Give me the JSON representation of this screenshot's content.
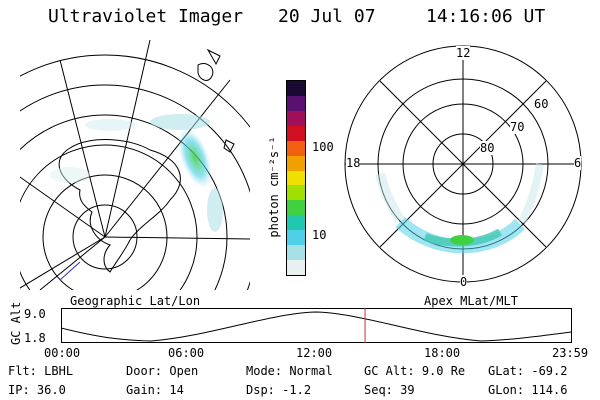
{
  "header": {
    "instrument": "Ultraviolet Imager",
    "date": "20 Jul 07",
    "time": "14:16:06 UT"
  },
  "left_map": {
    "caption": "Geographic Lat/Lon"
  },
  "right_map": {
    "caption": "Apex MLat/MLT",
    "mlt_labels": [
      "12",
      "18",
      "6",
      "0"
    ],
    "lat_labels": [
      "60",
      "70",
      "80"
    ]
  },
  "colorbar": {
    "label": "photon cm⁻²s⁻¹",
    "ticks": [
      "100",
      "10"
    ],
    "colors": [
      "#1a0a33",
      "#5a1070",
      "#a0105a",
      "#d01020",
      "#f06010",
      "#f0a000",
      "#f0e000",
      "#a0e000",
      "#40d040",
      "#20c8b0",
      "#50d0e8",
      "#a8e0e8",
      "#e8f0f0"
    ]
  },
  "timeline": {
    "axis_label": "GC Alt",
    "y_ticks": [
      "9.0",
      "1.8"
    ],
    "x_ticks": [
      "00:00",
      "06:00",
      "12:00",
      "18:00",
      "23:59"
    ],
    "current_time_fraction": 0.595
  },
  "status": {
    "rows": [
      [
        {
          "key": "Flt:",
          "value": "LBHL"
        },
        {
          "key": "Door:",
          "value": "Open"
        },
        {
          "key": "Mode:",
          "value": "Normal"
        },
        {
          "key": "GC Alt:",
          "value": "9.0 Re"
        },
        {
          "key": "GLat:",
          "value": "-69.2"
        }
      ],
      [
        {
          "key": "IP:",
          "value": "36.0"
        },
        {
          "key": "Gain:",
          "value": "14"
        },
        {
          "key": "Dsp:",
          "value": "-1.2"
        },
        {
          "key": "Seq:",
          "value": "39"
        },
        {
          "key": "GLon:",
          "value": "114.6"
        }
      ]
    ]
  }
}
